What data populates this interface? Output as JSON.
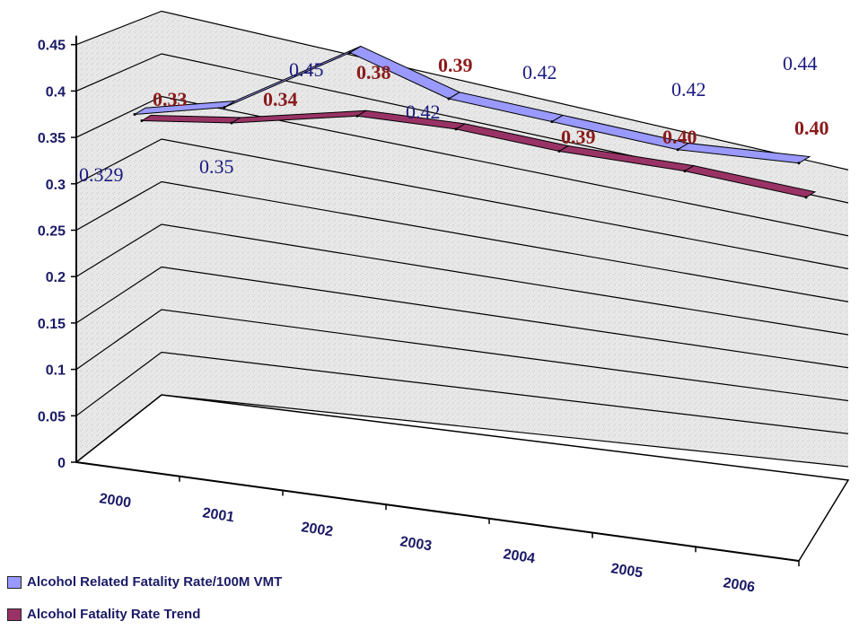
{
  "chart_data": {
    "type": "line",
    "style": "3d",
    "categories": [
      "2000",
      "2001",
      "2002",
      "2003",
      "2004",
      "2005",
      "2006"
    ],
    "ylim": [
      0,
      0.45
    ],
    "yticks": [
      "0",
      "0.05",
      "0.1",
      "0.15",
      "0.2",
      "0.25",
      "0.3",
      "0.35",
      "0.4",
      "0.45"
    ],
    "grid": true,
    "legend_position": "bottom-left",
    "series": [
      {
        "name": "Alcohol Related Fatality Rate/100M VMT",
        "values": [
          0.329,
          0.35,
          0.45,
          0.42,
          0.42,
          0.42,
          0.44
        ],
        "labels": [
          "0.329",
          "0.35",
          "0.45",
          "0.42",
          "0.42",
          "0.42",
          "0.44"
        ],
        "color": "#9999ff"
      },
      {
        "name": "Alcohol Fatality Rate Trend",
        "values": [
          0.33,
          0.34,
          0.38,
          0.39,
          0.39,
          0.4,
          0.4
        ],
        "labels": [
          "0.33",
          "0.34",
          "0.38",
          "0.39",
          "0.39",
          "0.40",
          "0.40"
        ],
        "color": "#993366"
      }
    ]
  }
}
